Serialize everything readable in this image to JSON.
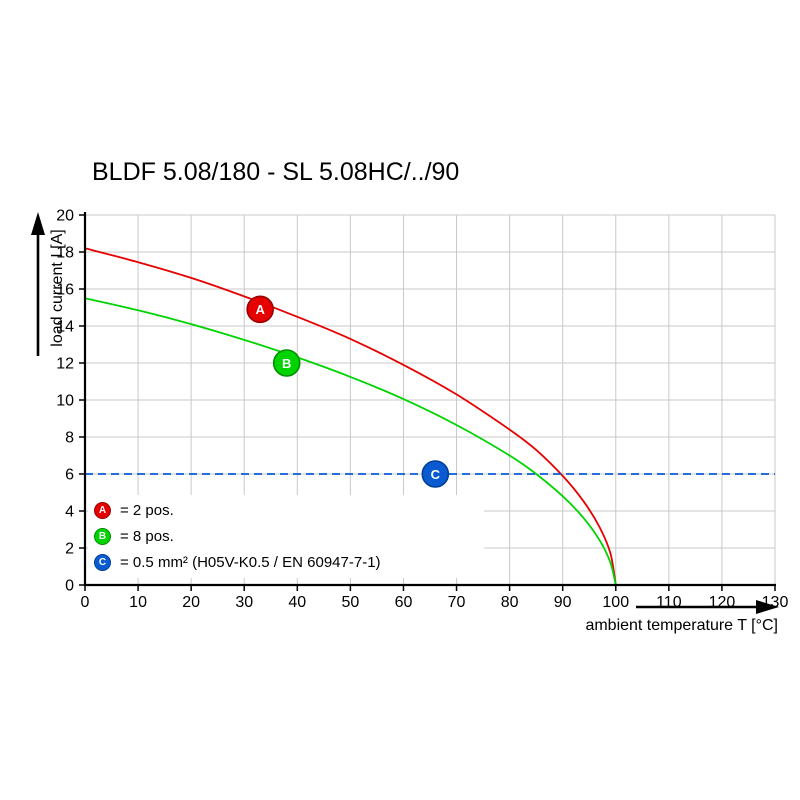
{
  "title": "BLDF 5.08/180 - SL 5.08HC/../90",
  "chart_data": {
    "type": "line",
    "title": "BLDF 5.08/180 - SL 5.08HC/../90",
    "xlabel": "ambient temperature T [°C]",
    "ylabel": "load current I [A]",
    "xlim": [
      0,
      130
    ],
    "ylim": [
      0,
      20
    ],
    "xticks": [
      0,
      10,
      20,
      30,
      40,
      50,
      60,
      70,
      80,
      90,
      100,
      110,
      120,
      130
    ],
    "yticks": [
      0,
      2,
      4,
      6,
      8,
      10,
      12,
      14,
      16,
      18,
      20
    ],
    "grid": true,
    "grid_color": "#c9c9c9",
    "legend_position": "bottom-left-inside",
    "series": [
      {
        "name": "A",
        "legend": "= 2 pos.",
        "color": "#e60000",
        "edge": "#990000",
        "dashed": false,
        "marker_at": {
          "x": 33,
          "y": 14.9
        },
        "points": [
          [
            0,
            18.2
          ],
          [
            10,
            17.45
          ],
          [
            20,
            16.6
          ],
          [
            30,
            15.6
          ],
          [
            40,
            14.5
          ],
          [
            50,
            13.3
          ],
          [
            60,
            11.9
          ],
          [
            70,
            10.3
          ],
          [
            80,
            8.4
          ],
          [
            85,
            7.3
          ],
          [
            90,
            5.9
          ],
          [
            94,
            4.5
          ],
          [
            97,
            3.1
          ],
          [
            99,
            1.7
          ],
          [
            100,
            0
          ]
        ]
      },
      {
        "name": "B",
        "legend": "= 8 pos.",
        "color": "#00d400",
        "edge": "#008f00",
        "dashed": false,
        "marker_at": {
          "x": 38,
          "y": 12
        },
        "points": [
          [
            0,
            15.5
          ],
          [
            10,
            14.85
          ],
          [
            20,
            14.1
          ],
          [
            30,
            13.25
          ],
          [
            40,
            12.3
          ],
          [
            50,
            11.25
          ],
          [
            60,
            10.05
          ],
          [
            70,
            8.65
          ],
          [
            80,
            7.0
          ],
          [
            85,
            6.0
          ],
          [
            90,
            4.8
          ],
          [
            94,
            3.6
          ],
          [
            97,
            2.4
          ],
          [
            99,
            1.2
          ],
          [
            100,
            0
          ]
        ]
      },
      {
        "name": "C",
        "legend": "= 0.5 mm² (H05V-K0.5 / EN 60947-7-1)",
        "color": "#0a5ad2",
        "edge": "#003f96",
        "dashed": true,
        "marker_at": {
          "x": 66,
          "y": 6
        },
        "points": [
          [
            0,
            6
          ],
          [
            130,
            6
          ]
        ]
      }
    ]
  }
}
